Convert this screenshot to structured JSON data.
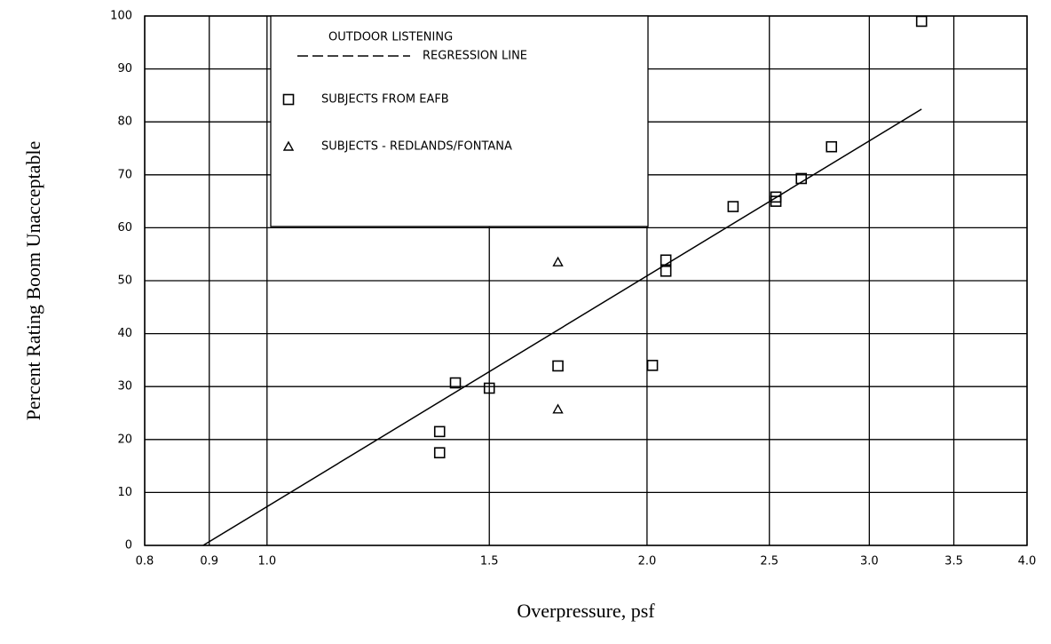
{
  "chart_data": {
    "type": "scatter",
    "xlabel": "Overpressure, psf",
    "ylabel": "Percent Rating Boom Unacceptable",
    "legend_title": "OUTDOOR LISTENING",
    "legend": "upper left",
    "grid": true,
    "xscale": "log",
    "xlim": [
      0.8,
      4.0
    ],
    "xticks": [
      0.8,
      0.9,
      {
        "value": 1.0,
        "label": "1.0"
      },
      1.5,
      {
        "value": 2.0,
        "label": "2.0"
      },
      2.5,
      {
        "value": 3.0,
        "label": "3.0"
      },
      3.5,
      {
        "value": 4.0,
        "label": "4.0"
      }
    ],
    "ylim": [
      0,
      100
    ],
    "yticks": [
      0,
      10,
      20,
      30,
      40,
      50,
      60,
      70,
      80,
      90,
      100
    ],
    "series": [
      {
        "name": "REGRESSION LINE",
        "marker": "line",
        "color": "#000000",
        "x": [
          0.89,
          3.3
        ],
        "values": [
          0,
          82.4
        ]
      },
      {
        "name": "SUBJECTS FROM EAFB",
        "marker": "square",
        "color": "#000000",
        "x": [
          1.37,
          1.37,
          1.41,
          1.5,
          1.7,
          2.02,
          2.07,
          2.07,
          2.34,
          2.53,
          2.53,
          2.65,
          2.8,
          3.3
        ],
        "values": [
          17.5,
          21.5,
          30.7,
          29.7,
          33.9,
          34,
          53.9,
          51.8,
          64,
          65.8,
          65,
          69.3,
          75.3,
          99
        ]
      },
      {
        "name": "SUBJECTS - REDLANDS/FONTANA",
        "marker": "triangle",
        "color": "#000000",
        "x": [
          1.7,
          1.7
        ],
        "values": [
          53.5,
          25.7
        ]
      }
    ]
  }
}
